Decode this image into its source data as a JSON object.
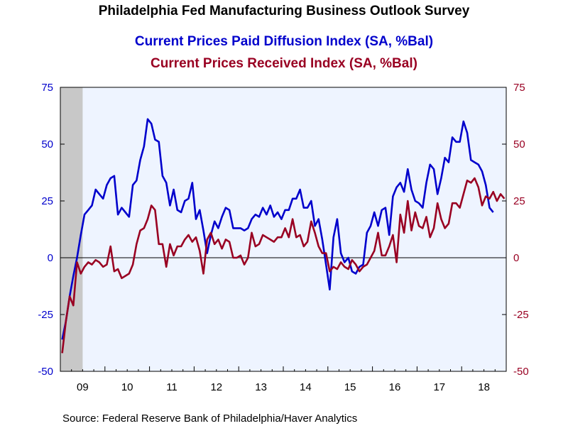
{
  "chart_data": {
    "type": "line",
    "title": "Philadelphia Fed Manufacturing Business Outlook Survey",
    "source": "Source:  Federal Reserve Bank of Philadelphia/Haver Analytics",
    "x_start": "2009-01",
    "x_end": "2018-12",
    "x_tick_labels": [
      "09",
      "10",
      "11",
      "12",
      "13",
      "14",
      "15",
      "16",
      "17",
      "18"
    ],
    "y_left": {
      "range": [
        -50,
        75
      ],
      "ticks": [
        "75",
        "50",
        "25",
        "0",
        "-25",
        "-50"
      ],
      "color": "#0000cc"
    },
    "y_right": {
      "range": [
        -50,
        75
      ],
      "ticks": [
        "75",
        "50",
        "25",
        "0",
        "-25",
        "-50"
      ],
      "color": "#990022"
    },
    "recession_shading": {
      "start": "2009-01",
      "end": "2009-06",
      "color": "#c8c8c8"
    },
    "plot_background": "#eef4ff",
    "grid": false,
    "series": [
      {
        "name": "Current Prices Paid Diffusion Index (SA, %Bal)",
        "color": "#0000cc",
        "start": "2009-01",
        "values": [
          -36,
          -28,
          -17,
          -8,
          0,
          10,
          19,
          21,
          23,
          30,
          28,
          26,
          32,
          35,
          36,
          19,
          22,
          20,
          18,
          32,
          34,
          43,
          49,
          61,
          59,
          52,
          51,
          36,
          33,
          23,
          30,
          21,
          20,
          25,
          26,
          33,
          17,
          21,
          12,
          2,
          10,
          16,
          13,
          18,
          22,
          21,
          13,
          13,
          13,
          12,
          13,
          17,
          19,
          18,
          22,
          19,
          23,
          18,
          20,
          17,
          21,
          21,
          26,
          26,
          30,
          22,
          22,
          25,
          14,
          17,
          8,
          -3,
          -14,
          9,
          17,
          2,
          -2,
          0,
          -6,
          -7,
          -4,
          -3,
          11,
          14,
          20,
          14,
          21,
          22,
          10,
          27,
          31,
          33,
          29,
          39,
          30,
          25,
          24,
          22,
          33,
          41,
          39,
          28,
          35,
          44,
          42,
          53,
          51,
          51,
          60,
          55,
          43,
          42,
          41,
          38,
          32,
          22,
          20
        ]
      },
      {
        "name": "Current Prices Received Index (SA, %Bal)",
        "color": "#990022",
        "start": "2009-01",
        "values": [
          -42,
          -28,
          -17,
          -21,
          -2,
          -7,
          -4,
          -2,
          -3,
          -1,
          -2,
          -4,
          -3,
          5,
          -6,
          -5,
          -9,
          -8,
          -7,
          -3,
          6,
          12,
          13,
          17,
          23,
          21,
          6,
          6,
          -4,
          6,
          1,
          5,
          5,
          8,
          10,
          7,
          9,
          3,
          -7,
          8,
          11,
          6,
          8,
          4,
          8,
          7,
          0,
          0,
          1,
          -3,
          0,
          11,
          5,
          6,
          10,
          9,
          8,
          7,
          9,
          9,
          13,
          9,
          17,
          9,
          10,
          5,
          7,
          16,
          11,
          5,
          2,
          2,
          -6,
          -4,
          -5,
          -2,
          -4,
          -5,
          -1,
          -3,
          -6,
          -4,
          -3,
          0,
          3,
          11,
          1,
          1,
          5,
          10,
          -2,
          19,
          11,
          25,
          12,
          20,
          14,
          13,
          18,
          9,
          13,
          24,
          17,
          13,
          15,
          24,
          24,
          22,
          28,
          34,
          33,
          35,
          31,
          23,
          27,
          26,
          29,
          25,
          28,
          26
        ]
      }
    ]
  }
}
